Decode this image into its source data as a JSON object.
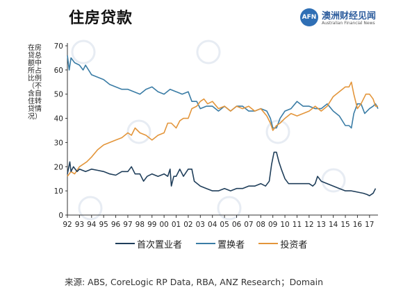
{
  "title": "住房贷款",
  "logo": {
    "mark": "AFN",
    "cn": "澳洲财经见闻",
    "en": "Australian Financial News"
  },
  "source": "来源: ABS, CoreLogic RP Data, RBA, ANZ Research；Domain",
  "chart_data": {
    "type": "line",
    "ylabel": "在房贷总额中所占比例（不含自住转贷情况）",
    "xlabel": "",
    "xlim": [
      1992,
      2017.7
    ],
    "ylim": [
      0,
      70
    ],
    "x_ticks": [
      1992,
      1993,
      1994,
      1995,
      1996,
      1997,
      1998,
      1999,
      2000,
      2001,
      2002,
      2003,
      2004,
      2005,
      2006,
      2007,
      2008,
      2009,
      2010,
      2011,
      2012,
      2013,
      2014,
      2015,
      2016,
      2017
    ],
    "x_tick_labels": [
      "92",
      "93",
      "94",
      "95",
      "96",
      "97",
      "98",
      "99",
      "00",
      "01",
      "02",
      "03",
      "04",
      "05",
      "06",
      "07",
      "08",
      "09",
      "10",
      "11",
      "12",
      "13",
      "14",
      "15",
      "16",
      "17"
    ],
    "y_ticks": [
      0,
      10,
      20,
      30,
      40,
      50,
      60,
      70
    ],
    "grid": false,
    "legend_position": "bottom",
    "series": [
      {
        "name": "首次置业者",
        "color": "#1f3e5a",
        "points": [
          [
            1992.0,
            17
          ],
          [
            1992.2,
            22
          ],
          [
            1992.3,
            18
          ],
          [
            1992.5,
            20
          ],
          [
            1992.8,
            18
          ],
          [
            1993.0,
            19
          ],
          [
            1993.5,
            18
          ],
          [
            1994.0,
            19
          ],
          [
            1994.5,
            18.5
          ],
          [
            1995.0,
            18
          ],
          [
            1995.5,
            17
          ],
          [
            1996.0,
            16.5
          ],
          [
            1996.5,
            18
          ],
          [
            1997.0,
            18
          ],
          [
            1997.3,
            20
          ],
          [
            1997.6,
            17
          ],
          [
            1998.0,
            17
          ],
          [
            1998.3,
            14
          ],
          [
            1998.6,
            16
          ],
          [
            1999.0,
            17
          ],
          [
            1999.5,
            16
          ],
          [
            2000.0,
            17
          ],
          [
            2000.3,
            16
          ],
          [
            2000.5,
            19
          ],
          [
            2000.6,
            12
          ],
          [
            2000.8,
            16
          ],
          [
            2001.0,
            16
          ],
          [
            2001.3,
            19
          ],
          [
            2001.6,
            16
          ],
          [
            2002.0,
            19
          ],
          [
            2002.3,
            19
          ],
          [
            2002.5,
            14
          ],
          [
            2003.0,
            12
          ],
          [
            2003.5,
            11
          ],
          [
            2004.0,
            10
          ],
          [
            2004.5,
            10
          ],
          [
            2005.0,
            11
          ],
          [
            2005.5,
            10
          ],
          [
            2006.0,
            11
          ],
          [
            2006.5,
            11
          ],
          [
            2007.0,
            12
          ],
          [
            2007.5,
            12
          ],
          [
            2008.0,
            13
          ],
          [
            2008.4,
            12
          ],
          [
            2008.7,
            14
          ],
          [
            2008.9,
            21
          ],
          [
            2009.1,
            26
          ],
          [
            2009.3,
            26
          ],
          [
            2009.5,
            22
          ],
          [
            2009.7,
            19
          ],
          [
            2010.0,
            15
          ],
          [
            2010.3,
            13
          ],
          [
            2010.6,
            13
          ],
          [
            2011.0,
            13
          ],
          [
            2011.5,
            13
          ],
          [
            2012.0,
            13
          ],
          [
            2012.3,
            12
          ],
          [
            2012.5,
            13
          ],
          [
            2012.7,
            16
          ],
          [
            2013.0,
            14
          ],
          [
            2013.5,
            13
          ],
          [
            2014.0,
            12
          ],
          [
            2014.5,
            11
          ],
          [
            2015.0,
            10
          ],
          [
            2015.5,
            10
          ],
          [
            2016.0,
            9.5
          ],
          [
            2016.5,
            9
          ],
          [
            2016.8,
            8.5
          ],
          [
            2017.0,
            8
          ],
          [
            2017.3,
            9
          ],
          [
            2017.5,
            11
          ]
        ]
      },
      {
        "name": "置换者",
        "color": "#3a7ca5",
        "points": [
          [
            1992.0,
            66
          ],
          [
            1992.15,
            60
          ],
          [
            1992.3,
            65
          ],
          [
            1992.6,
            63
          ],
          [
            1993.0,
            62
          ],
          [
            1993.3,
            60
          ],
          [
            1993.5,
            62
          ],
          [
            1994.0,
            58
          ],
          [
            1994.5,
            57
          ],
          [
            1995.0,
            56
          ],
          [
            1995.5,
            54
          ],
          [
            1996.0,
            53
          ],
          [
            1996.5,
            52
          ],
          [
            1997.0,
            52
          ],
          [
            1997.5,
            51
          ],
          [
            1998.0,
            50
          ],
          [
            1998.5,
            52
          ],
          [
            1999.0,
            53
          ],
          [
            1999.5,
            51
          ],
          [
            2000.0,
            50
          ],
          [
            2000.5,
            52
          ],
          [
            2001.0,
            51
          ],
          [
            2001.5,
            50
          ],
          [
            2002.0,
            51
          ],
          [
            2002.3,
            47
          ],
          [
            2002.7,
            47
          ],
          [
            2003.0,
            44
          ],
          [
            2003.5,
            45
          ],
          [
            2004.0,
            45
          ],
          [
            2004.5,
            43
          ],
          [
            2005.0,
            45
          ],
          [
            2005.5,
            43
          ],
          [
            2006.0,
            45
          ],
          [
            2006.5,
            45
          ],
          [
            2007.0,
            43
          ],
          [
            2007.5,
            43
          ],
          [
            2008.0,
            44
          ],
          [
            2008.5,
            43
          ],
          [
            2008.8,
            40
          ],
          [
            2009.0,
            36
          ],
          [
            2009.3,
            36
          ],
          [
            2009.6,
            40
          ],
          [
            2010.0,
            43
          ],
          [
            2010.5,
            44
          ],
          [
            2011.0,
            47
          ],
          [
            2011.5,
            45
          ],
          [
            2012.0,
            45
          ],
          [
            2012.5,
            44
          ],
          [
            2013.0,
            44
          ],
          [
            2013.5,
            46
          ],
          [
            2014.0,
            43
          ],
          [
            2014.5,
            41
          ],
          [
            2015.0,
            37
          ],
          [
            2015.3,
            37
          ],
          [
            2015.5,
            36
          ],
          [
            2015.7,
            42
          ],
          [
            2016.0,
            46
          ],
          [
            2016.3,
            46
          ],
          [
            2016.6,
            42
          ],
          [
            2017.0,
            44
          ],
          [
            2017.3,
            45
          ],
          [
            2017.5,
            46
          ],
          [
            2017.7,
            44
          ]
        ]
      },
      {
        "name": "投资者",
        "color": "#e3953a",
        "points": [
          [
            1992.0,
            16
          ],
          [
            1992.3,
            18
          ],
          [
            1992.6,
            17
          ],
          [
            1993.0,
            20
          ],
          [
            1993.3,
            21
          ],
          [
            1993.6,
            22
          ],
          [
            1994.0,
            24
          ],
          [
            1994.5,
            27
          ],
          [
            1995.0,
            29
          ],
          [
            1995.5,
            30
          ],
          [
            1996.0,
            31
          ],
          [
            1996.5,
            32
          ],
          [
            1997.0,
            34
          ],
          [
            1997.3,
            33
          ],
          [
            1997.6,
            36
          ],
          [
            1998.0,
            34
          ],
          [
            1998.5,
            33
          ],
          [
            1999.0,
            31
          ],
          [
            1999.5,
            33
          ],
          [
            2000.0,
            34
          ],
          [
            2000.3,
            38
          ],
          [
            2000.6,
            38
          ],
          [
            2001.0,
            36
          ],
          [
            2001.3,
            39
          ],
          [
            2001.6,
            40
          ],
          [
            2002.0,
            40
          ],
          [
            2002.3,
            44
          ],
          [
            2002.7,
            45
          ],
          [
            2003.0,
            47
          ],
          [
            2003.3,
            48
          ],
          [
            2003.6,
            46
          ],
          [
            2004.0,
            47
          ],
          [
            2004.5,
            44
          ],
          [
            2005.0,
            45
          ],
          [
            2005.5,
            43
          ],
          [
            2006.0,
            45
          ],
          [
            2006.5,
            44
          ],
          [
            2007.0,
            45
          ],
          [
            2007.5,
            43
          ],
          [
            2008.0,
            44
          ],
          [
            2008.5,
            41
          ],
          [
            2008.8,
            38
          ],
          [
            2009.0,
            35
          ],
          [
            2009.3,
            37
          ],
          [
            2009.6,
            38
          ],
          [
            2010.0,
            40
          ],
          [
            2010.5,
            42
          ],
          [
            2011.0,
            41
          ],
          [
            2011.5,
            42
          ],
          [
            2012.0,
            43
          ],
          [
            2012.5,
            45
          ],
          [
            2013.0,
            43
          ],
          [
            2013.5,
            45
          ],
          [
            2014.0,
            49
          ],
          [
            2014.5,
            51
          ],
          [
            2015.0,
            53
          ],
          [
            2015.3,
            53
          ],
          [
            2015.5,
            55
          ],
          [
            2015.7,
            50
          ],
          [
            2016.0,
            44
          ],
          [
            2016.3,
            46
          ],
          [
            2016.7,
            50
          ],
          [
            2017.0,
            50
          ],
          [
            2017.3,
            48
          ],
          [
            2017.5,
            45
          ],
          [
            2017.7,
            45
          ]
        ]
      }
    ]
  }
}
